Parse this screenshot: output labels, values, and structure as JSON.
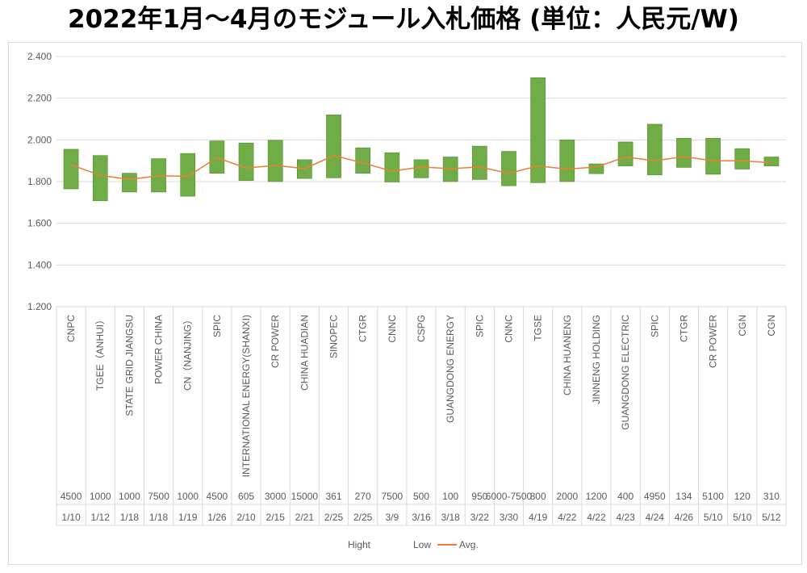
{
  "title": "2022年1月～4月のモジュール入札価格 (単位：人民元/W)",
  "chart_data": {
    "type": "bar",
    "subtype": "high-low-average (floating bars with average line)",
    "y_ticks": [
      "2.400",
      "2.200",
      "2.000",
      "1.800",
      "1.600",
      "1.400",
      "1.200"
    ],
    "ylim": [
      1.2,
      2.4
    ],
    "grid": true,
    "legend_position": "bottom",
    "legend": [
      "Hight",
      "Low",
      "Avg."
    ],
    "colors": {
      "bar": "#70ad47",
      "bar_edge": "#4e8a2f",
      "avg": "#ed7d31",
      "grid": "#d9d9d9"
    },
    "categories": [
      "CNPC",
      "TGEE（ANHUI）",
      "STATE GRID JIANGSU",
      "POWER CHINA",
      "CN（NANJING）",
      "SPIC",
      "INTERNATIONAL ENERGY(SHANXI)",
      "CR POWER",
      "CHINA HUADIAN",
      "SINOPEC",
      "CTGR",
      "CNNC",
      "CSPG",
      "GUANGDONG ENERGY",
      "SPIC",
      "CNNC",
      "TGSE",
      "CHINA HUANENG",
      "JINNENG HOLDING",
      "GUANGDONG ELECTRIC",
      "SPIC",
      "CTGR",
      "CR POWER",
      "CGN",
      "CGN"
    ],
    "volumes": [
      "4500",
      "1000",
      "1000",
      "7500",
      "1000",
      "4500",
      "605",
      "3000",
      "15000",
      "361",
      "270",
      "7500",
      "500",
      "100",
      "950",
      "6000-7500",
      "800",
      "2000",
      "1200",
      "400",
      "4950",
      "134",
      "5100",
      "120",
      "310"
    ],
    "dates": [
      "1/10",
      "1/12",
      "1/18",
      "1/18",
      "1/19",
      "1/26",
      "2/10",
      "2/15",
      "2/21",
      "2/25",
      "2/25",
      "3/9",
      "3/16",
      "3/18",
      "3/22",
      "3/30",
      "4/19",
      "4/22",
      "4/22",
      "4/23",
      "4/24",
      "4/26",
      "5/10",
      "5/10",
      "5/12"
    ],
    "series": [
      {
        "name": "Hight",
        "values": [
          1.955,
          1.925,
          1.84,
          1.91,
          1.935,
          1.995,
          1.985,
          1.998,
          1.905,
          2.12,
          1.962,
          1.938,
          1.905,
          1.918,
          1.97,
          1.945,
          2.298,
          2.0,
          1.885,
          1.99,
          2.075,
          2.008,
          2.008,
          1.958,
          1.918
        ]
      },
      {
        "name": "Low",
        "values": [
          1.765,
          1.708,
          1.75,
          1.75,
          1.73,
          1.84,
          1.805,
          1.8,
          1.815,
          1.818,
          1.84,
          1.798,
          1.818,
          1.8,
          1.81,
          1.78,
          1.795,
          1.8,
          1.838,
          1.875,
          1.832,
          1.868,
          1.835,
          1.86,
          1.875
        ]
      },
      {
        "name": "Avg.",
        "values": [
          1.88,
          1.83,
          1.81,
          1.828,
          1.825,
          1.915,
          1.865,
          1.878,
          1.862,
          1.925,
          1.89,
          1.85,
          1.87,
          1.862,
          1.87,
          1.84,
          1.875,
          1.86,
          1.87,
          1.918,
          1.9,
          1.92,
          1.9,
          1.9,
          1.89
        ]
      }
    ]
  }
}
